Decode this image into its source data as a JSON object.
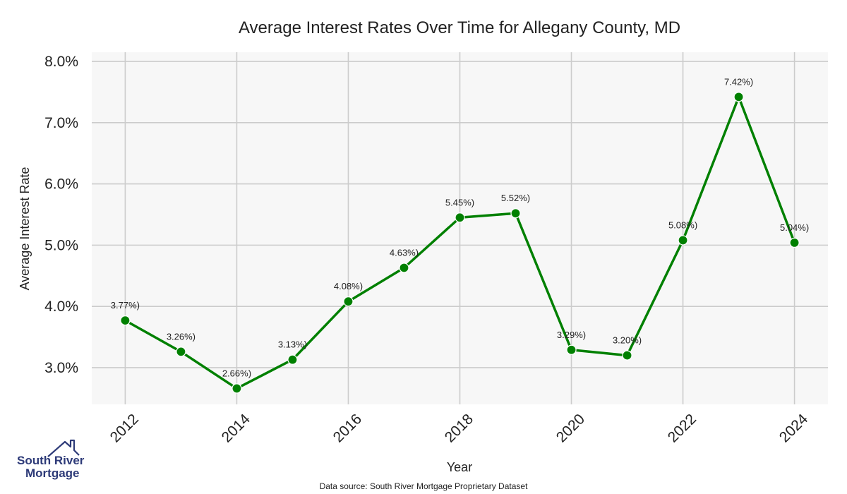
{
  "chart_data": {
    "type": "line",
    "title": "Average Interest Rates Over Time for Allegany County, MD",
    "xlabel": "Year",
    "ylabel": "Average Interest Rate",
    "x": [
      2012,
      2013,
      2014,
      2015,
      2016,
      2017,
      2018,
      2019,
      2020,
      2021,
      2022,
      2023,
      2024
    ],
    "series": [
      {
        "values": [
          3.77,
          3.26,
          2.66,
          3.13,
          4.08,
          4.63,
          5.45,
          5.52,
          3.29,
          3.2,
          5.08,
          7.42,
          5.04
        ],
        "labels": [
          "3.77%)",
          "3.26%)",
          "2.66%)",
          "3.13%)",
          "4.08%)",
          "4.63%)",
          "5.45%)",
          "5.52%)",
          "3.29%)",
          "3.20%)",
          "5.08%)",
          "7.42%)",
          "5.04%)"
        ],
        "color": "#008000"
      }
    ],
    "x_ticks": [
      2012,
      2014,
      2016,
      2018,
      2020,
      2022,
      2024
    ],
    "x_tick_labels": [
      "2012",
      "2014",
      "2016",
      "2018",
      "2020",
      "2022",
      "2024"
    ],
    "y_ticks": [
      3.0,
      4.0,
      5.0,
      6.0,
      7.0,
      8.0
    ],
    "y_tick_labels": [
      "3.0%",
      "4.0%",
      "5.0%",
      "6.0%",
      "7.0%",
      "8.0%"
    ],
    "xlim": [
      2011.4,
      2024.6
    ],
    "ylim": [
      2.4,
      8.15
    ],
    "grid": true,
    "plot_background": "#f7f7f7",
    "grid_color": "#cccccc"
  },
  "source_text": "Data source: South River Mortgage Proprietary Dataset",
  "logo": {
    "line1": "South River",
    "line2": "Mortgage",
    "color": "#2d3a78",
    "icon": "house-roof-icon"
  }
}
